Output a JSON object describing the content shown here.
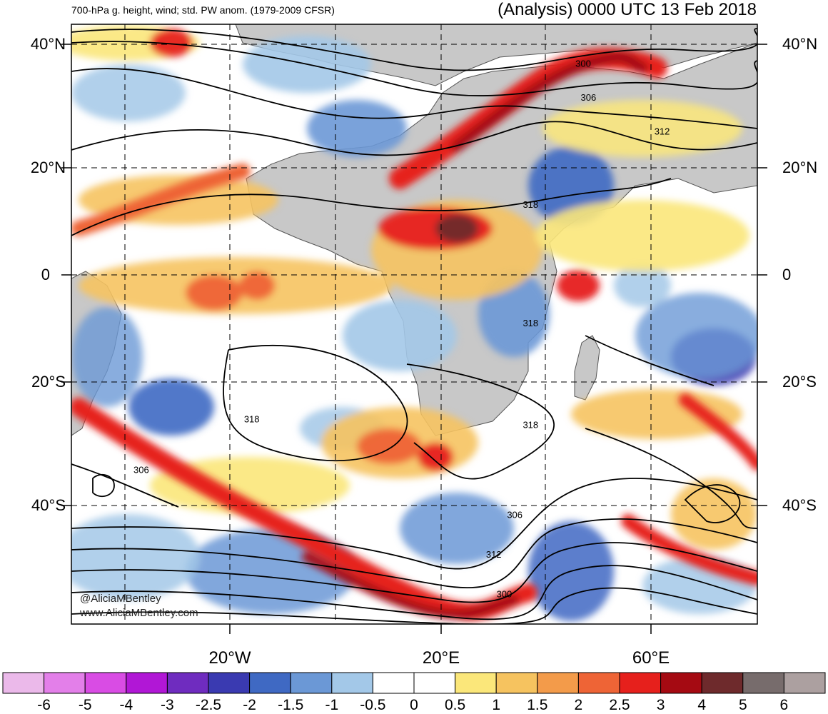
{
  "header": {
    "left_title": "700-hPa g. height, wind; std. PW anom. (1979-2009 CFSR)",
    "right_title": "(Analysis) 0000 UTC 13 Feb 2018"
  },
  "lat_labels": [
    {
      "text": "40°N",
      "lat": 40
    },
    {
      "text": "20°N",
      "lat": 20
    },
    {
      "text": "0",
      "lat": 0
    },
    {
      "text": "20°S",
      "lat": -20
    },
    {
      "text": "40°S",
      "lat": -40
    }
  ],
  "lon_labels": [
    {
      "text": "20°W",
      "lon": -20
    },
    {
      "text": "20°E",
      "lon": 20
    },
    {
      "text": "60°E",
      "lon": 60
    }
  ],
  "contour_labels": [
    {
      "text": "300",
      "lon": 47,
      "lat": 37
    },
    {
      "text": "306",
      "lon": 48,
      "lat": 31
    },
    {
      "text": "312",
      "lon": 62,
      "lat": 25
    },
    {
      "text": "318",
      "lon": 37,
      "lat": 12
    },
    {
      "text": "318",
      "lon": 37,
      "lat": -9
    },
    {
      "text": "318",
      "lon": 37,
      "lat": -27
    },
    {
      "text": "318",
      "lon": -16,
      "lat": -26
    },
    {
      "text": "306",
      "lon": -37,
      "lat": -35
    },
    {
      "text": "306",
      "lon": 34,
      "lat": -43
    },
    {
      "text": "312",
      "lon": 30,
      "lat": -50
    },
    {
      "text": "300",
      "lon": 32,
      "lat": -57
    }
  ],
  "credits": {
    "twitter": "@AliciaMBentley",
    "website": "www.AliciaMBentley.com"
  },
  "colorbar": {
    "colors": [
      "#ebb9ea",
      "#e37fe9",
      "#d94ce4",
      "#b117d6",
      "#6f2cbf",
      "#3a3ab1",
      "#3f69c3",
      "#6b98d6",
      "#a3c8e8",
      "#ffffff",
      "#ffffff",
      "#fbe77a",
      "#f6c35f",
      "#f39b4a",
      "#ee6436",
      "#e6201c",
      "#a50a12",
      "#6e2a2c",
      "#776c6c",
      "#aca0a0"
    ],
    "labels": [
      "-6",
      "-5",
      "-4",
      "-3",
      "-2.5",
      "-2",
      "-1.5",
      "-1",
      "-0.5",
      "0",
      "0.5",
      "1",
      "1.5",
      "2",
      "2.5",
      "3",
      "4",
      "5",
      "6"
    ]
  }
}
